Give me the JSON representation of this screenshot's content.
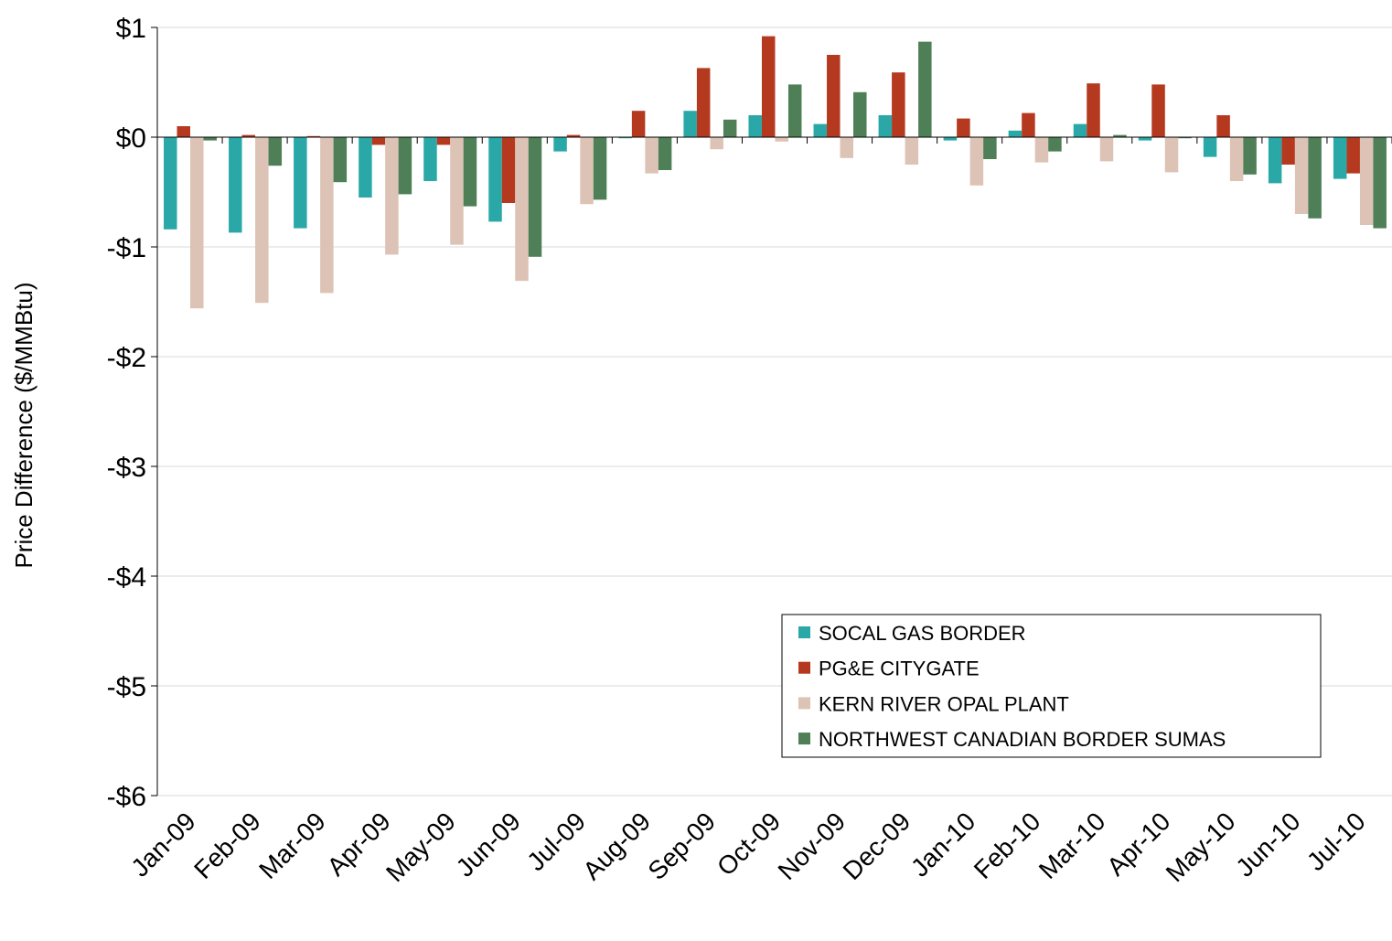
{
  "chart_data": {
    "type": "bar",
    "y_label": "Price Difference  ($/MMBtu)",
    "categories": [
      "Jan-09",
      "Feb-09",
      "Mar-09",
      "Apr-09",
      "May-09",
      "Jun-09",
      "Jul-09",
      "Aug-09",
      "Sep-09",
      "Oct-09",
      "Nov-09",
      "Dec-09",
      "Jan-10",
      "Feb-10",
      "Mar-10",
      "Apr-10",
      "May-10",
      "Jun-10",
      "Jul-10"
    ],
    "series": [
      {
        "name": "SOCAL GAS BORDER",
        "color": "#2aa8a8",
        "values": [
          -0.84,
          -0.87,
          -0.83,
          -0.55,
          -0.4,
          -0.77,
          -0.13,
          -0.01,
          0.24,
          0.2,
          0.12,
          0.2,
          -0.03,
          0.06,
          0.12,
          -0.03,
          -0.18,
          -0.42,
          -0.38
        ]
      },
      {
        "name": "PG&E CITYGATE",
        "color": "#b5391f",
        "values": [
          0.1,
          0.02,
          0.01,
          -0.07,
          -0.07,
          -0.6,
          0.02,
          0.24,
          0.63,
          0.92,
          0.75,
          0.59,
          0.17,
          0.22,
          0.49,
          0.48,
          0.2,
          -0.25,
          -0.33
        ]
      },
      {
        "name": "KERN RIVER OPAL PLANT",
        "color": "#dcc3b5",
        "values": [
          -1.56,
          -1.51,
          -1.42,
          -1.07,
          -0.98,
          -1.31,
          -0.61,
          -0.33,
          -0.11,
          -0.04,
          -0.19,
          -0.25,
          -0.44,
          -0.23,
          -0.22,
          -0.32,
          -0.4,
          -0.7,
          -0.8
        ]
      },
      {
        "name": "NORTHWEST CANADIAN BORDER SUMAS",
        "color": "#4e7f56",
        "values": [
          -0.03,
          -0.26,
          -0.41,
          -0.52,
          -0.63,
          -1.09,
          -0.57,
          -0.3,
          0.16,
          0.48,
          0.41,
          0.87,
          -0.2,
          -0.13,
          0.02,
          -0.01,
          -0.34,
          -0.74,
          -0.83
        ]
      }
    ],
    "ylim": [
      -6,
      1
    ],
    "yticks": [
      {
        "value": -6,
        "label": "-$6"
      },
      {
        "value": -5,
        "label": "-$5"
      },
      {
        "value": -4,
        "label": "-$4"
      },
      {
        "value": -3,
        "label": "-$3"
      },
      {
        "value": -2,
        "label": "-$2"
      },
      {
        "value": -1,
        "label": "-$1"
      },
      {
        "value": 0,
        "label": "$0"
      },
      {
        "value": 1,
        "label": "$1"
      }
    ],
    "grid": true
  }
}
